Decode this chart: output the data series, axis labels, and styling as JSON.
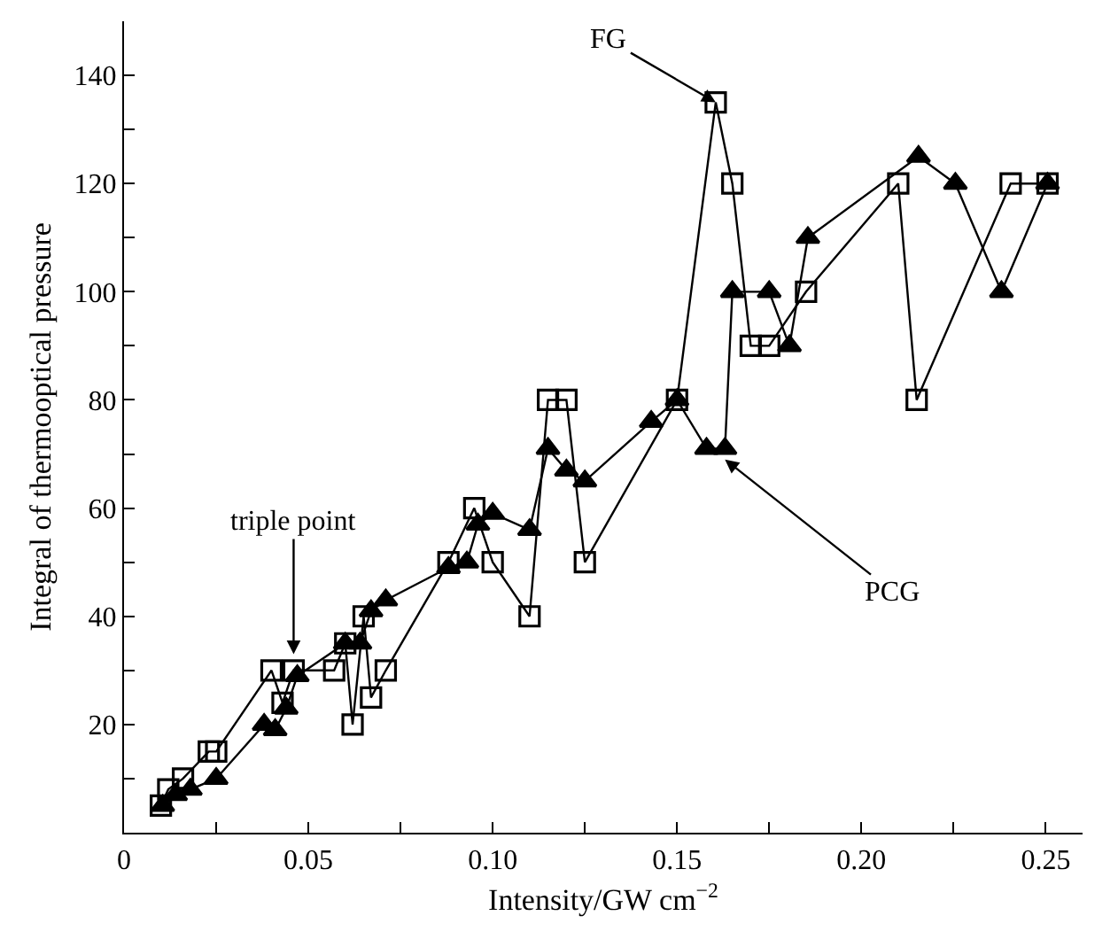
{
  "chart_data": {
    "type": "line",
    "xlabel": "Intensity/GW cm$^{−2}$",
    "ylabel": "Integral of thermooptical pressure",
    "xlim": [
      0,
      0.26
    ],
    "ylim": [
      0,
      150
    ],
    "xticks": [
      0,
      {
        "value": 0.025,
        "label": null
      },
      0.05,
      {
        "value": 0.075,
        "label": null
      },
      {
        "value": 0.1,
        "label": "0.10"
      },
      {
        "value": 0.125,
        "label": null
      },
      0.15,
      {
        "value": 0.175,
        "label": null
      },
      {
        "value": 0.2,
        "label": "0.20"
      },
      {
        "value": 0.225,
        "label": null
      },
      0.25
    ],
    "yticks": [
      {
        "value": 10,
        "label": null
      },
      20,
      {
        "value": 30,
        "label": null
      },
      40,
      {
        "value": 50,
        "label": null
      },
      60,
      {
        "value": 70,
        "label": null
      },
      80,
      {
        "value": 90,
        "label": null
      },
      100,
      {
        "value": 110,
        "label": null
      },
      120,
      {
        "value": 130,
        "label": null
      },
      140
    ],
    "series": [
      {
        "color": "#000000",
        "marker": "square",
        "x": [
          0.01,
          0.012,
          0.016,
          0.023,
          0.025,
          0.04,
          0.043,
          0.046,
          0.057,
          0.06,
          0.062,
          0.065,
          0.067,
          0.071,
          0.088,
          0.095,
          0.1,
          0.11,
          0.115,
          0.12,
          0.125,
          0.15,
          0.1605,
          0.165,
          0.17,
          0.175,
          0.185,
          0.21,
          0.215,
          0.2405,
          0.2505
        ],
        "values": [
          5,
          8,
          10,
          15,
          15,
          30,
          24,
          30,
          30,
          35,
          20,
          40,
          25,
          30,
          50,
          60,
          50,
          40,
          80,
          80,
          50,
          80,
          135,
          120,
          90,
          90,
          100,
          120,
          80,
          120,
          120
        ]
      },
      {
        "color": "#000000",
        "marker": "triangle",
        "x": [
          0.0105,
          0.014,
          0.018,
          0.025,
          0.038,
          0.041,
          0.044,
          0.047,
          0.06,
          0.064,
          0.067,
          0.071,
          0.088,
          0.093,
          0.096,
          0.1,
          0.11,
          0.115,
          0.12,
          0.125,
          0.143,
          0.15,
          0.158,
          0.163,
          0.165,
          0.175,
          0.1805,
          0.1855,
          0.2155,
          0.2255,
          0.238,
          0.2505
        ],
        "values": [
          5,
          7,
          8,
          10,
          20,
          19,
          23,
          29,
          35,
          35,
          41,
          43,
          49,
          50,
          57,
          59,
          56,
          71,
          67,
          65,
          76,
          80,
          71,
          71,
          100,
          100,
          90,
          110,
          125,
          120,
          100,
          120
        ]
      }
    ],
    "annotations": [
      {
        "text": "triple point",
        "x": 0.046,
        "y": 33
      },
      {
        "text": "FG",
        "x": 0.1605,
        "y": 135
      },
      {
        "text": "PCG",
        "x": 0.163,
        "y": 69
      }
    ]
  }
}
